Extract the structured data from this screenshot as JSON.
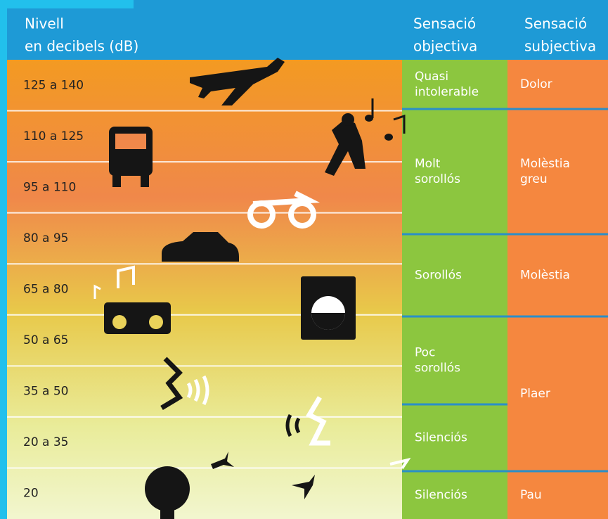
{
  "header": {
    "level_title": [
      "Nivell",
      "en decibels (dB)"
    ],
    "objective_title": [
      "Sensació",
      "objectiva"
    ],
    "subjective_title": [
      "Sensació",
      "subjectiva"
    ]
  },
  "rows": [
    "125 a 140",
    "110 a 125",
    "95 a 110",
    "80 a 95",
    "65 a 80",
    "50 a 65",
    "35 a 50",
    "20 a 35",
    "20"
  ],
  "objective": [
    [
      "Quasi",
      "intolerable"
    ],
    [
      "Molt",
      "sorollós"
    ],
    [
      "Sorollós"
    ],
    [
      "Poc",
      "sorollós"
    ],
    [
      "Silenciós"
    ],
    [
      "Silenciós"
    ]
  ],
  "subjective": [
    [
      "Dolor"
    ],
    [
      "Molèstia",
      "greu"
    ],
    [
      "Molèstia"
    ],
    [
      "Plaer"
    ],
    [
      "Pau"
    ]
  ]
}
